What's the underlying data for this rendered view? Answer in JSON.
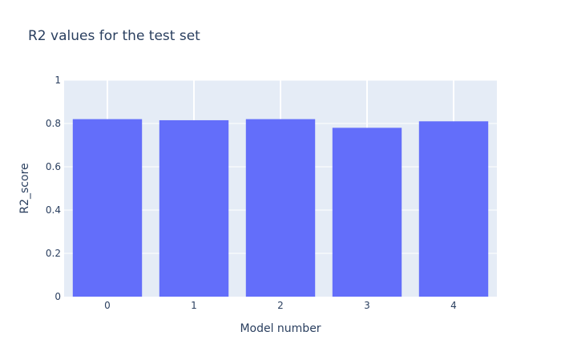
{
  "chart_data": {
    "type": "bar",
    "title": "R2 values for the test set",
    "xlabel": "Model number",
    "ylabel": "R2_score",
    "categories": [
      "0",
      "1",
      "2",
      "3",
      "4"
    ],
    "values": [
      0.82,
      0.815,
      0.82,
      0.78,
      0.81
    ],
    "ylim": [
      0,
      1
    ],
    "yticks": [
      0,
      0.2,
      0.4,
      0.6,
      0.8,
      1
    ],
    "ytick_labels": [
      "0",
      "0.2",
      "0.4",
      "0.6",
      "0.8",
      "1"
    ],
    "grid": true,
    "colors": {
      "bar": "#636efa",
      "plot_background": "#e5ecf6",
      "grid": "#ffffff",
      "text": "#2a3f5f"
    }
  }
}
